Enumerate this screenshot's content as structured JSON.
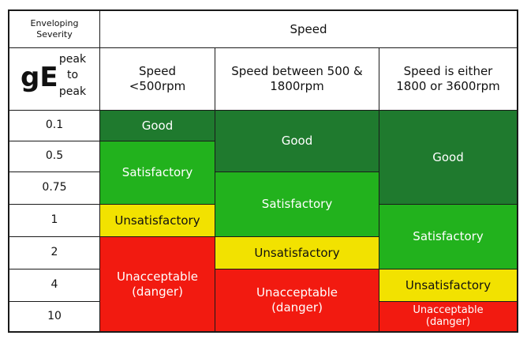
{
  "header": {
    "severity_label": "Enveloping Severity",
    "speed_label": "Speed",
    "ge_main": "gE",
    "ge_unit": "peak to peak",
    "columns": [
      "Speed <500rpm",
      "Speed between 500 & 1800rpm",
      "Speed is either 1800 or 3600rpm"
    ]
  },
  "levels": [
    "0.1",
    "0.5",
    "0.75",
    "1",
    "2",
    "4",
    "10"
  ],
  "bands": {
    "col1": [
      "Good",
      "Satisfactory",
      "Unsatisfactory",
      "Unacceptable (danger)"
    ],
    "col2": [
      "Good",
      "Satisfactory",
      "Unsatisfactory",
      "Unacceptable (danger)"
    ],
    "col3": [
      "Good",
      "Satisfactory",
      "Unsatisfactory",
      "Unacceptable (danger)"
    ]
  },
  "colors": {
    "good": "#1f7a2e",
    "satisfactory": "#22b21d",
    "unsatisfactory": "#f2e200",
    "unacceptable": "#f21a10"
  }
}
